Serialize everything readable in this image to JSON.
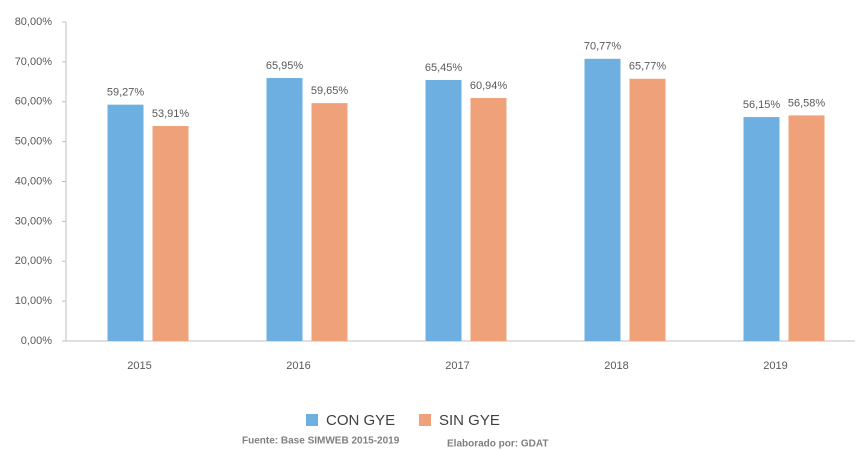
{
  "chart_data": {
    "type": "bar",
    "categories": [
      "2015",
      "2016",
      "2017",
      "2018",
      "2019"
    ],
    "series": [
      {
        "name": "CON GYE",
        "color": "#6dafe0",
        "values": [
          59.27,
          65.95,
          65.45,
          70.77,
          56.15
        ],
        "value_labels": [
          "59,27%",
          "65,95%",
          "65,45%",
          "70,77%",
          "56,15%"
        ]
      },
      {
        "name": "SIN GYE",
        "color": "#efa17a",
        "values": [
          53.91,
          59.65,
          60.94,
          65.77,
          56.58
        ],
        "value_labels": [
          "53,91%",
          "59,65%",
          "60,94%",
          "65,77%",
          "56,58%"
        ]
      }
    ],
    "ylim": [
      0,
      80
    ],
    "yticks": [
      {
        "value": 0,
        "label": "0,00%"
      },
      {
        "value": 10,
        "label": "10,00%"
      },
      {
        "value": 20,
        "label": "20,00%"
      },
      {
        "value": 30,
        "label": "30,00%"
      },
      {
        "value": 40,
        "label": "40,00%"
      },
      {
        "value": 50,
        "label": "50,00%"
      },
      {
        "value": 60,
        "label": "60,00%"
      },
      {
        "value": 70,
        "label": "70,00%"
      },
      {
        "value": 80,
        "label": "80,00%"
      }
    ],
    "legend": "bottom",
    "annotations": [
      "Fuente: Base SIMWEB 2015-2019",
      "Elaborado por: GDAT"
    ]
  }
}
